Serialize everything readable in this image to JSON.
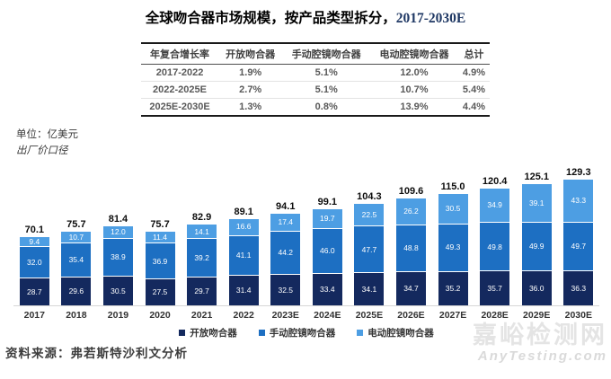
{
  "title": {
    "main": "全球吻合器市场规模，按产品类型拆分，",
    "range": "2017-2030E"
  },
  "table": {
    "headers": [
      "年复合增长率",
      "开放吻合器",
      "手动腔镜吻合器",
      "电动腔镜吻合器",
      "总计"
    ],
    "rows": [
      [
        "2017-2022",
        "1.9%",
        "5.1%",
        "12.0%",
        "4.9%"
      ],
      [
        "2022-2025E",
        "2.7%",
        "5.1%",
        "10.7%",
        "5.4%"
      ],
      [
        "2025E-2030E",
        "1.3%",
        "0.8%",
        "13.9%",
        "4.4%"
      ]
    ]
  },
  "unit": {
    "line1": "单位：亿美元",
    "line2": "出厂价口径"
  },
  "chart_data": {
    "type": "bar",
    "stacked": true,
    "title": "全球吻合器市场规模，按产品类型拆分，2017-2030E",
    "ylabel": "亿美元",
    "grid": false,
    "legend_position": "bottom",
    "categories": [
      "2017",
      "2018",
      "2019",
      "2020",
      "2021",
      "2022",
      "2023E",
      "2024E",
      "2025E",
      "2026E",
      "2027E",
      "2028E",
      "2029E",
      "2030E"
    ],
    "series": [
      {
        "name": "开放吻合器",
        "color": "#14295e",
        "values": [
          28.7,
          29.6,
          30.5,
          27.5,
          29.7,
          31.4,
          32.5,
          33.4,
          34.1,
          34.7,
          35.2,
          35.7,
          36.0,
          36.3
        ]
      },
      {
        "name": "手动腔镜吻合器",
        "color": "#1d6fc2",
        "values": [
          32.0,
          35.4,
          38.9,
          36.9,
          39.2,
          41.1,
          44.2,
          46.0,
          47.7,
          48.8,
          49.3,
          49.8,
          49.9,
          49.7
        ]
      },
      {
        "name": "电动腔镜吻合器",
        "color": "#4d9ee3",
        "values": [
          9.4,
          10.7,
          12.0,
          11.4,
          14.1,
          16.6,
          17.4,
          19.7,
          22.5,
          26.2,
          30.5,
          34.9,
          39.1,
          43.3
        ]
      }
    ],
    "totals": [
      70.1,
      75.7,
      81.4,
      75.7,
      82.9,
      89.1,
      94.1,
      99.1,
      104.3,
      109.6,
      115.0,
      120.4,
      125.1,
      129.3
    ]
  },
  "source": "资料来源：弗若斯特沙利文分析",
  "watermark": {
    "line1": "嘉峪检测网",
    "line2": "AnyTesting.com"
  }
}
